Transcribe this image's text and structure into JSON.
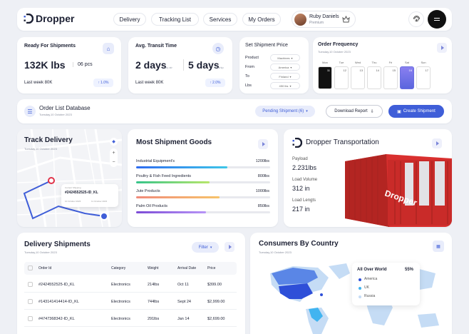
{
  "brand": "Dropper",
  "nav": [
    "Delivery",
    "Tracking List",
    "Services",
    "My Orders"
  ],
  "user": {
    "name": "Ruby Daniels",
    "role": "Premium"
  },
  "ready": {
    "title": "Ready For Shipments",
    "value": "132K lbs",
    "extra": "06 pcs",
    "last": "Last week 80K",
    "change": "1.0%",
    "change_arrow": "↑"
  },
  "transit": {
    "title": "Avg. Transit Time",
    "v1": "2 days",
    "u1": "by air",
    "v2": "5 days",
    "u2": "by ship",
    "last": "Last week 80K",
    "change": "2.0%",
    "change_arrow": "↑"
  },
  "price": {
    "title": "Set Shipment Price",
    "rows": [
      {
        "label": "Product",
        "value": "Machines"
      },
      {
        "label": "From",
        "value": "America"
      },
      {
        "label": "To",
        "value": "Finland"
      },
      {
        "label": "Lbs",
        "value": "450 lbs"
      }
    ]
  },
  "freq": {
    "title": "Order Frequency",
    "date": "Tuesday,10 October 2023",
    "days": [
      "Mon",
      "Tue",
      "Wed",
      "Thu",
      "Fri",
      "Sat",
      "Sun"
    ],
    "nums": [
      "11",
      "12",
      "13",
      "14",
      "15",
      "16",
      "17"
    ],
    "nums2": [
      "18",
      "19"
    ]
  },
  "olist": {
    "title": "Order List Database",
    "date": "Tuesday,10 October 2023",
    "pending": "Pending Shipment (6)",
    "download": "Download Report",
    "create": "Create Shipment"
  },
  "track": {
    "title": "Track Delivery",
    "date": "Tuesday,10 October 2023",
    "label": "Current Shipping",
    "id": "#2424552525-ID_KL",
    "d1": "10 October 2023",
    "d2": "11 October 2023"
  },
  "goods": {
    "title": "Most Shipment Goods",
    "items": [
      {
        "name": "Industrial Equipment's",
        "value": "1200lbs",
        "pct": 0.68,
        "color": "#2e6bf0",
        "color2": "#3ec6e8"
      },
      {
        "name": "Poultry & Fish Feed Ingredients",
        "value": "800lbs",
        "pct": 0.55,
        "color": "#36c48a",
        "color2": "#b7e66a"
      },
      {
        "name": "Jute Products",
        "value": "1000lbs",
        "pct": 0.62,
        "color": "#f08a7a",
        "color2": "#f7c36a"
      },
      {
        "name": "Palm Oil Products",
        "value": "850lbs",
        "pct": 0.52,
        "color": "#7c4bd6",
        "color2": "#b794f6"
      }
    ]
  },
  "transport": {
    "title": "Dropper Transportation",
    "stats": [
      {
        "label": "Payload",
        "value": "2.231lbs"
      },
      {
        "label": "Load Volume",
        "value": "312 in"
      },
      {
        "label": "Load Lengts",
        "value": "217 in"
      }
    ],
    "container_brand": "Dropper"
  },
  "deliv": {
    "title": "Delivery Shipments",
    "date": "Tuesday,10 October 2023",
    "filter": "Filter",
    "cols": [
      "Order Id",
      "Category",
      "Weight",
      "Arrival Date",
      "Price"
    ],
    "rows": [
      [
        "#2424552525-ID_KL",
        "Electronics",
        "214lbs",
        "Oct 11",
        "$399.00"
      ],
      [
        "#143141414414-ID_KL",
        "Electronics",
        "744lbs",
        "Sept 24",
        "$2,999.00"
      ],
      [
        "#4747368342-ID_KL",
        "Electronics",
        "291lbs",
        "Jan 14",
        "$2,699.00"
      ]
    ]
  },
  "consumers": {
    "title": "Consumers By Country",
    "date": "Tuesday,10 October 2023",
    "legend_title": "All Over World",
    "legend_value": "55%",
    "legend": [
      {
        "name": "America",
        "color": "#2e4fd8"
      },
      {
        "name": "UK",
        "color": "#41b4f0"
      },
      {
        "name": "Russia",
        "color": "#c5dcf5"
      }
    ]
  },
  "colors": {
    "accent": "#3f5ed8",
    "dark": "#111111"
  }
}
